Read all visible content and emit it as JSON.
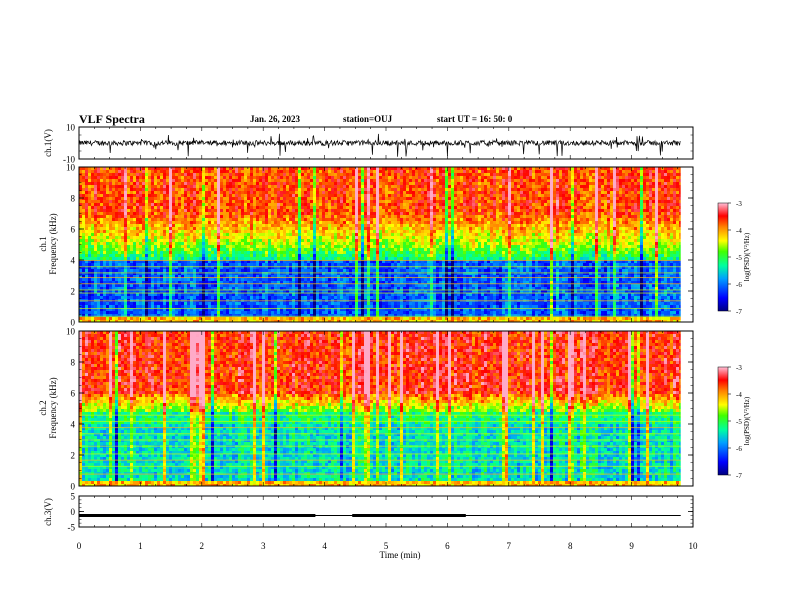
{
  "header": {
    "title": "VLF Spectra",
    "date": "Jan. 26, 2023",
    "station": "station=OUJ",
    "start_ut": "start  UT  =   16: 50: 0"
  },
  "colors": {
    "background": "#ffffff",
    "frame": "#000000",
    "colormap": [
      "#0000a0",
      "#0040ff",
      "#00c8ff",
      "#00ff80",
      "#ffff00",
      "#ff8000",
      "#ff0000",
      "#ff60a0"
    ]
  },
  "chart_data": [
    {
      "id": "ch1_waveform",
      "type": "line",
      "ylabel": "ch.1(V)",
      "ylim": [
        -10,
        10
      ],
      "yticks": [
        "10",
        "-10"
      ],
      "xlim": [
        0,
        10
      ],
      "note_trace_end_min": 9.8
    },
    {
      "id": "ch1_spectrogram",
      "type": "heatmap",
      "ylabel": "ch.1\nFrequency (kHz)",
      "ylabel_line1": "ch.1",
      "ylabel_line2": "Frequency (kHz)",
      "ylim": [
        0,
        10
      ],
      "yticks": [
        "0",
        "2",
        "4",
        "6",
        "8",
        "10"
      ],
      "xlim": [
        0,
        10
      ],
      "data_end_min": 9.8,
      "colorbar": {
        "label": "log(PSD)(V²/Hz)",
        "range": [
          -7,
          -3
        ],
        "ticks": [
          "-3",
          "-4",
          "-5",
          "-6",
          "-7"
        ]
      },
      "low_power_band_khz": [
        0,
        3.5
      ],
      "high_power_above_khz": 5
    },
    {
      "id": "ch2_spectrogram",
      "type": "heatmap",
      "ylabel": "ch.2\nFrequency (kHz)",
      "ylabel_line1": "ch.2",
      "ylabel_line2": "Frequency (kHz)",
      "ylim": [
        0,
        10
      ],
      "yticks": [
        "0",
        "2",
        "4",
        "6",
        "8",
        "10"
      ],
      "xlim": [
        0,
        10
      ],
      "data_end_min": 9.8,
      "colorbar": {
        "label": "log(PSD)(V²/Hz)",
        "range": [
          -7,
          -3
        ],
        "ticks": [
          "-3",
          "-4",
          "-5",
          "-6",
          "-7"
        ]
      },
      "high_power_above_khz": 5
    },
    {
      "id": "ch3_monitor",
      "type": "line",
      "ylabel": "ch.3(V)",
      "ylim": [
        -5,
        5
      ],
      "yticks": [
        "5",
        "0",
        "-5"
      ],
      "xlim": [
        0,
        10
      ],
      "xlabel": "Time  (min)",
      "xticks": [
        "0",
        "1",
        "2",
        "3",
        "4",
        "5",
        "6",
        "7",
        "8",
        "9",
        "10"
      ],
      "level_v": -1.3,
      "thick_segments_min": [
        [
          0,
          3.85
        ],
        [
          4.45,
          6.3
        ]
      ],
      "data_end_min": 9.8
    }
  ]
}
